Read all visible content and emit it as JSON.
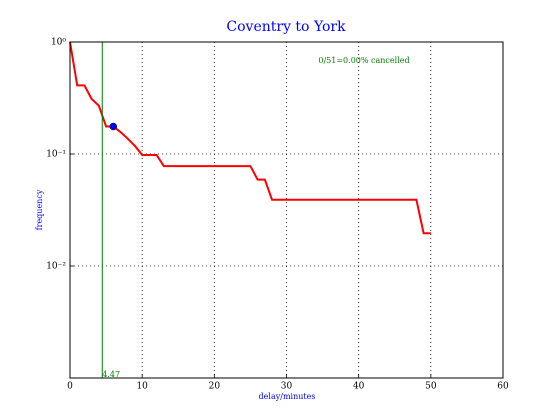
{
  "chart_data": {
    "type": "line",
    "title": "Coventry to York",
    "xlabel": "delay/minutes",
    "ylabel": "frequency",
    "annotation": "0/51=0.00% cancelled",
    "log_y": true,
    "grid": true,
    "xlim": [
      0,
      60
    ],
    "xticks": [
      0,
      10,
      20,
      30,
      40,
      50,
      60
    ],
    "ylim": [
      0.001,
      1
    ],
    "yticks": [
      {
        "value": 1,
        "label": "10⁰"
      },
      {
        "value": 0.1,
        "label": "10⁻¹"
      },
      {
        "value": 0.01,
        "label": "10⁻²"
      }
    ],
    "x": [
      0,
      1,
      2,
      3,
      4,
      5,
      6,
      7,
      8,
      9,
      10,
      12,
      13,
      25,
      26,
      27,
      28,
      48,
      49,
      50
    ],
    "series": [
      {
        "color": "#ff0000",
        "values": [
          1,
          0.41,
          0.41,
          0.31,
          0.27,
          0.176,
          0.176,
          0.157,
          0.137,
          0.118,
          0.098,
          0.098,
          0.078,
          0.078,
          0.059,
          0.059,
          0.039,
          0.039,
          0.0196,
          0.0196
        ]
      }
    ],
    "vline": {
      "value": 4.47,
      "color": "#007f00"
    },
    "marker": {
      "x": 6,
      "y": 0.176,
      "color": "#0000ff"
    }
  }
}
